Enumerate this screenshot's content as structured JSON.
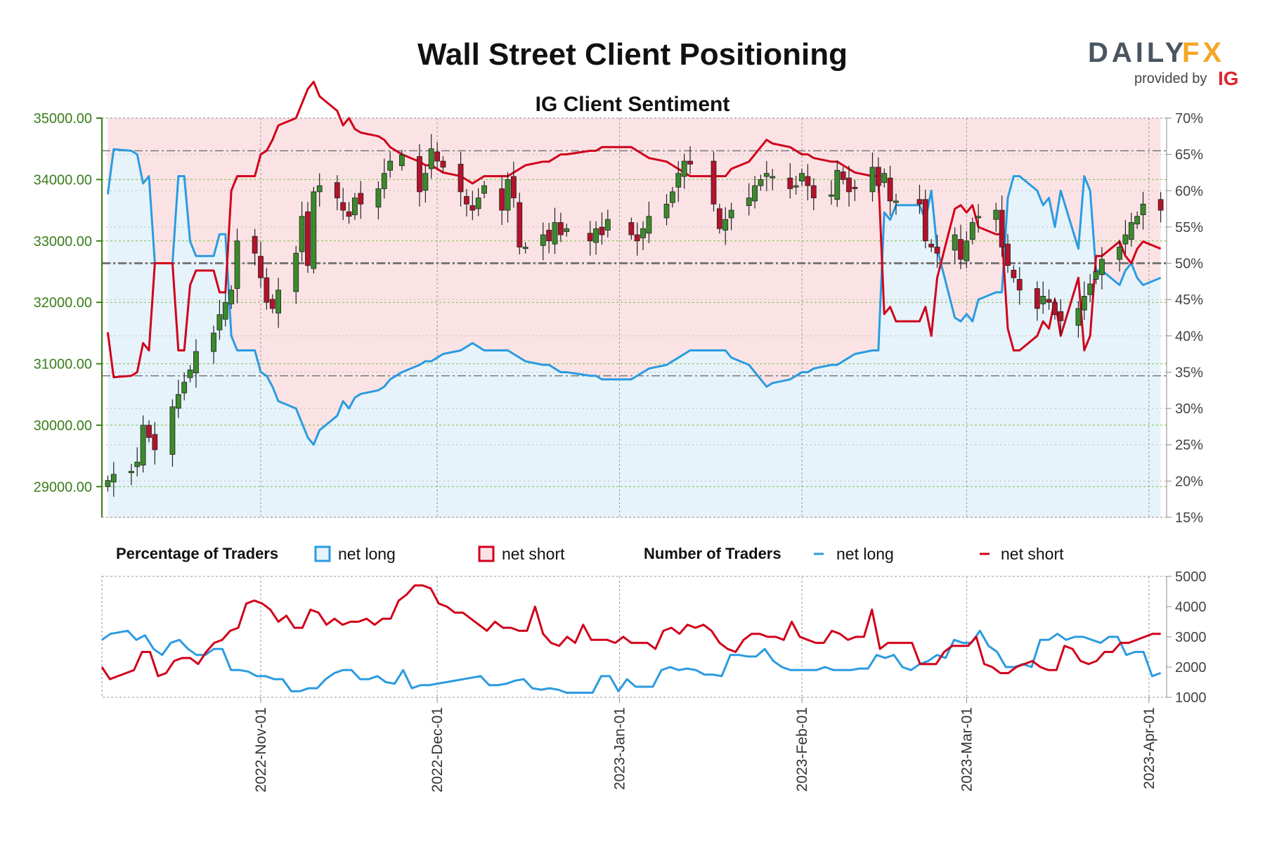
{
  "header": {
    "title": "Wall Street Client Positioning",
    "subtitle": "IG Client Sentiment"
  },
  "brand": {
    "logo_left": "DAILY",
    "logo_right": "FX",
    "provided_by": "provided by",
    "ig": "IG"
  },
  "legend": {
    "pct_title": "Percentage of Traders",
    "pct_long": "net long",
    "pct_short": "net short",
    "num_title": "Number of Traders",
    "num_long": "net long",
    "num_short": "net short"
  },
  "colors": {
    "long": "#2b9be0",
    "short": "#d0021b",
    "long_fill": "#e6f3fb",
    "short_fill": "#fbe3e5",
    "candle_up": "#3b8a2c",
    "candle_down": "#b5122b",
    "grid": "#7fbf3f",
    "left_axis": "#3a7d1a"
  },
  "chart_data": [
    {
      "type": "candlestick",
      "subtitle": "IG Client Sentiment",
      "y_left_ticks": [
        "29000.00",
        "30000.00",
        "31000.00",
        "32000.00",
        "33000.00",
        "34000.00",
        "35000.00"
      ],
      "y_left_range": [
        28500,
        35000
      ],
      "y_right_ticks": [
        "15%",
        "20%",
        "25%",
        "30%",
        "35%",
        "40%",
        "45%",
        "50%",
        "55%",
        "60%",
        "65%",
        "70%"
      ],
      "y_right_range": [
        15,
        70
      ],
      "reference_levels_pct": [
        34.5,
        50,
        65.5
      ],
      "x_ticks": [
        "2022-Nov-01",
        "2022-Dec-01",
        "2023-Jan-01",
        "2023-Feb-01",
        "2023-Mar-01",
        "2023-Apr-01"
      ],
      "candle_dates": [
        "2022-10-06",
        "2022-10-07",
        "2022-10-10",
        "2022-10-11",
        "2022-10-12",
        "2022-10-13",
        "2022-10-14",
        "2022-10-17",
        "2022-10-18",
        "2022-10-19",
        "2022-10-20",
        "2022-10-21",
        "2022-10-24",
        "2022-10-25",
        "2022-10-26",
        "2022-10-27",
        "2022-10-28",
        "2022-10-31",
        "2022-11-01",
        "2022-11-02",
        "2022-11-03",
        "2022-11-04",
        "2022-11-07",
        "2022-11-08",
        "2022-11-09",
        "2022-11-10",
        "2022-11-11",
        "2022-11-14",
        "2022-11-15",
        "2022-11-16",
        "2022-11-17",
        "2022-11-18",
        "2022-11-21",
        "2022-11-22",
        "2022-11-23",
        "2022-11-25",
        "2022-11-28",
        "2022-11-29",
        "2022-11-30",
        "2022-12-01",
        "2022-12-02",
        "2022-12-05",
        "2022-12-06",
        "2022-12-07",
        "2022-12-08",
        "2022-12-09",
        "2022-12-12",
        "2022-12-13",
        "2022-12-14",
        "2022-12-15",
        "2022-12-16",
        "2022-12-19",
        "2022-12-20",
        "2022-12-21",
        "2022-12-22",
        "2022-12-23",
        "2022-12-27",
        "2022-12-28",
        "2022-12-29",
        "2022-12-30",
        "2023-01-03",
        "2023-01-04",
        "2023-01-05",
        "2023-01-06",
        "2023-01-09",
        "2023-01-10",
        "2023-01-11",
        "2023-01-12",
        "2023-01-13",
        "2023-01-17",
        "2023-01-18",
        "2023-01-19",
        "2023-01-20",
        "2023-01-23",
        "2023-01-24",
        "2023-01-25",
        "2023-01-26",
        "2023-01-27",
        "2023-01-30",
        "2023-01-31",
        "2023-02-01",
        "2023-02-02",
        "2023-02-03",
        "2023-02-06",
        "2023-02-07",
        "2023-02-08",
        "2023-02-09",
        "2023-02-10",
        "2023-02-13",
        "2023-02-14",
        "2023-02-15",
        "2023-02-16",
        "2023-02-17",
        "2023-02-21",
        "2023-02-22",
        "2023-02-23",
        "2023-02-24",
        "2023-02-27",
        "2023-02-28",
        "2023-03-01",
        "2023-03-02",
        "2023-03-03",
        "2023-03-06",
        "2023-03-07",
        "2023-03-08",
        "2023-03-09",
        "2023-03-10",
        "2023-03-13",
        "2023-03-14",
        "2023-03-15",
        "2023-03-16",
        "2023-03-17",
        "2023-03-20",
        "2023-03-21",
        "2023-03-22",
        "2023-03-23",
        "2023-03-24",
        "2023-03-27",
        "2023-03-28",
        "2023-03-29",
        "2023-03-30",
        "2023-03-31",
        "2023-04-03"
      ],
      "candle_close": [
        29100,
        29200,
        29250,
        29400,
        30000,
        29800,
        29600,
        30300,
        30500,
        30700,
        30900,
        31200,
        31500,
        31800,
        32000,
        32200,
        33000,
        32800,
        32400,
        32000,
        31900,
        32200,
        32800,
        33400,
        32600,
        33800,
        33900,
        33700,
        33500,
        33400,
        33700,
        33600,
        33850,
        34100,
        34300,
        34400,
        33800,
        34100,
        34500,
        34300,
        34200,
        33800,
        33600,
        33500,
        33700,
        33900,
        33500,
        34000,
        33700,
        32900,
        32900,
        33100,
        33000,
        33300,
        33100,
        33200,
        33000,
        33200,
        33100,
        33350,
        33100,
        33000,
        33200,
        33400,
        33600,
        33800,
        34100,
        34300,
        34250,
        33600,
        33200,
        33350,
        33500,
        33700,
        33900,
        34000,
        34100,
        34050,
        33850,
        33900,
        34100,
        33900,
        33700,
        33750,
        34150,
        34000,
        33800,
        33850,
        34200,
        33900,
        34100,
        33650,
        33650,
        33600,
        33000,
        32900,
        32800,
        33100,
        32700,
        33000,
        33300,
        33400,
        33500,
        32900,
        32600,
        32400,
        32200,
        31900,
        32100,
        32000,
        31800,
        31700,
        31900,
        32100,
        32300,
        32500,
        32700,
        32900,
        33100,
        33300,
        33400,
        33600,
        33500
      ],
      "pct_long_line_pct": [
        59.5,
        65.7,
        65.5,
        65.0,
        61.0,
        62.0,
        50.0,
        50.0,
        62.0,
        62.0,
        53.0,
        51.0,
        51.0,
        54.0,
        54.0,
        40.0,
        38.0,
        38.0,
        35.0,
        34.5,
        33.0,
        31.0,
        30.0,
        28.0,
        26.0,
        25.0,
        27.0,
        29.0,
        31.0,
        30.0,
        31.5,
        32.0,
        32.5,
        33.0,
        34.0,
        35.0,
        36.0,
        36.5,
        36.5,
        37.0,
        37.5,
        38.0,
        38.5,
        39.0,
        38.5,
        38.0,
        38.0,
        38.0,
        37.5,
        37.0,
        36.5,
        36.0,
        36.0,
        35.5,
        35.0,
        35.0,
        34.5,
        34.5,
        34.0,
        34.0,
        34.0,
        34.5,
        35.0,
        35.5,
        36.0,
        36.5,
        37.0,
        37.5,
        38.0,
        38.0,
        38.0,
        38.0,
        37.0,
        36.0,
        35.0,
        34.0,
        33.0,
        33.5,
        34.0,
        34.5,
        35.0,
        35.0,
        35.5,
        36.0,
        36.0,
        36.5,
        37.0,
        37.5,
        38.0,
        38.0,
        57.0,
        56.0,
        58.0,
        58.0,
        56.0,
        60.0,
        52.0,
        42.5,
        42.0,
        43.0,
        42.0,
        45.0,
        46.0,
        46.0,
        59.0,
        62.0,
        62.0,
        60.0,
        58.0,
        59.0,
        55.0,
        60.0,
        52.0,
        62.0,
        60.0,
        49.0,
        49.0,
        47.0,
        49.0,
        50.0,
        48.0,
        47.0,
        48.0
      ],
      "pct_short_line_pct": [
        40.5,
        34.3,
        34.5,
        35.0,
        39.0,
        38.0,
        50.0,
        50.0,
        38.0,
        38.0,
        47.0,
        49.0,
        49.0,
        46.0,
        46.0,
        60.0,
        62.0,
        62.0,
        65.0,
        65.5,
        67.0,
        69.0,
        70.0,
        72.0,
        74.0,
        75.0,
        73.0,
        71.0,
        69.0,
        70.0,
        68.5,
        68.0,
        67.5,
        67.0,
        66.0,
        65.0,
        64.0,
        63.5,
        63.5,
        63.0,
        62.5,
        62.0,
        61.5,
        61.0,
        61.5,
        62.0,
        62.0,
        62.0,
        62.5,
        63.0,
        63.5,
        64.0,
        64.0,
        64.5,
        65.0,
        65.0,
        65.5,
        65.5,
        66.0,
        66.0,
        66.0,
        65.5,
        65.0,
        64.5,
        64.0,
        63.5,
        63.0,
        62.5,
        62.0,
        62.0,
        62.0,
        62.0,
        63.0,
        64.0,
        65.0,
        66.0,
        67.0,
        66.5,
        66.0,
        65.5,
        65.0,
        65.0,
        64.5,
        64.0,
        64.0,
        63.5,
        63.0,
        62.5,
        62.0,
        62.0,
        43.0,
        44.0,
        42.0,
        42.0,
        44.0,
        40.0,
        48.0,
        57.5,
        58.0,
        57.0,
        58.0,
        55.0,
        54.0,
        54.0,
        41.0,
        38.0,
        38.0,
        40.0,
        42.0,
        41.0,
        45.0,
        40.0,
        48.0,
        38.0,
        40.0,
        51.0,
        51.0,
        53.0,
        51.0,
        50.0,
        52.0,
        53.0,
        52.0
      ],
      "series": [
        {
          "name": "net long"
        },
        {
          "name": "net short"
        }
      ]
    },
    {
      "type": "line",
      "y_ticks": [
        "1000",
        "2000",
        "3000",
        "4000",
        "5000"
      ],
      "y_range": [
        1000,
        5000
      ],
      "series": [
        {
          "name": "net long",
          "values": [
            2900,
            3100,
            3150,
            3200,
            2900,
            3050,
            2600,
            2400,
            2800,
            2900,
            2600,
            2400,
            2400,
            2600,
            2600,
            1900,
            1900,
            1850,
            1700,
            1700,
            1600,
            1600,
            1200,
            1200,
            1300,
            1300,
            1600,
            1800,
            1900,
            1900,
            1600,
            1600,
            1700,
            1500,
            1450,
            1900,
            1300,
            1400,
            1400,
            1450,
            1500,
            1550,
            1600,
            1650,
            1700,
            1400,
            1400,
            1450,
            1550,
            1600,
            1300,
            1250,
            1300,
            1250,
            1150,
            1150,
            1150,
            1150,
            1700,
            1700,
            1200,
            1600,
            1350,
            1350,
            1350,
            1900,
            2000,
            1900,
            1950,
            1900,
            1750,
            1750,
            1700,
            2400,
            2400,
            2350,
            2350,
            2600,
            2200,
            2000,
            1900,
            1900,
            1900,
            1900,
            2000,
            1900,
            1900,
            1900,
            1950,
            1950,
            2400,
            2300,
            2400,
            2000,
            1900,
            2100,
            2200,
            2400,
            2300,
            2900,
            2800,
            2800,
            3200,
            2700,
            2500,
            2000,
            2000,
            2100,
            2000,
            2900,
            2900,
            3100,
            2900,
            3000,
            3000,
            2900,
            2800,
            3000,
            3000,
            2400,
            2500,
            2500,
            1700,
            1800
          ],
          "short_values_note": ""
        },
        {
          "name": "net short",
          "values": [
            2000,
            1600,
            1700,
            1800,
            1900,
            2500,
            2500,
            1700,
            1800,
            2200,
            2300,
            2300,
            2100,
            2500,
            2800,
            2900,
            3200,
            3300,
            4100,
            4200,
            4100,
            3900,
            3500,
            3700,
            3300,
            3300,
            3900,
            3800,
            3400,
            3600,
            3400,
            3500,
            3500,
            3600,
            3400,
            3600,
            3600,
            4200,
            4400,
            4700,
            4700,
            4600,
            4100,
            4000,
            3800,
            3800,
            3600,
            3400,
            3200,
            3500,
            3300,
            3300,
            3200,
            3200,
            4000,
            3100,
            2800,
            2700,
            3000,
            2800,
            3400,
            2900,
            2900,
            2900,
            2800,
            3000,
            2800,
            2800,
            2800,
            2600,
            3200,
            3300,
            3100,
            3400,
            3300,
            3400,
            3200,
            2800,
            2600,
            2500,
            2900,
            3100,
            3100,
            3000,
            3000,
            2900,
            3500,
            3000,
            2900,
            2800,
            2800,
            3200,
            3100,
            2900,
            3000,
            3000,
            3900,
            2600,
            2800,
            2800,
            2800,
            2800,
            2100,
            2100,
            2100,
            2500,
            2700,
            2700,
            2700,
            3000,
            2100,
            2000,
            1800,
            1800,
            2000,
            2100,
            2200,
            2000,
            1900,
            1900,
            2700,
            2600,
            2200,
            2100,
            2200,
            2500,
            2500,
            2800,
            2800,
            2900,
            3000,
            3100,
            3100
          ]
        }
      ]
    }
  ]
}
